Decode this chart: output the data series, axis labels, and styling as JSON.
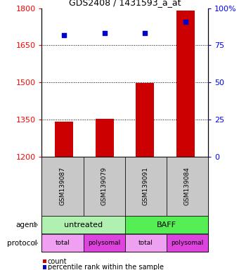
{
  "title": "GDS2408 / 1431593_a_at",
  "samples": [
    "GSM139087",
    "GSM139079",
    "GSM139091",
    "GSM139084"
  ],
  "bar_values": [
    1340,
    1352,
    1497,
    1790
  ],
  "dot_values": [
    82,
    83,
    83,
    91
  ],
  "ylim_left": [
    1200,
    1800
  ],
  "ylim_right": [
    0,
    100
  ],
  "yticks_left": [
    1200,
    1350,
    1500,
    1650,
    1800
  ],
  "yticks_right": [
    0,
    25,
    50,
    75,
    100
  ],
  "ytick_labels_right": [
    "0",
    "25",
    "50",
    "75",
    "100%"
  ],
  "bar_color": "#cc0000",
  "dot_color": "#0000cc",
  "bar_bottom": 1200,
  "agent_colors": [
    "#b0f0b0",
    "#55ee55"
  ],
  "protocol_colors_list": [
    "#f0a0f0",
    "#dd44dd",
    "#f0a0f0",
    "#dd44dd"
  ],
  "protocol_labels": [
    "total",
    "polysomal",
    "total",
    "polysomal"
  ],
  "label_agent": "agent",
  "label_protocol": "protocol",
  "legend_count": "count",
  "legend_pct": "percentile rank within the sample",
  "sample_box_color": "#c8c8c8",
  "fig_width": 3.4,
  "fig_height": 3.84
}
